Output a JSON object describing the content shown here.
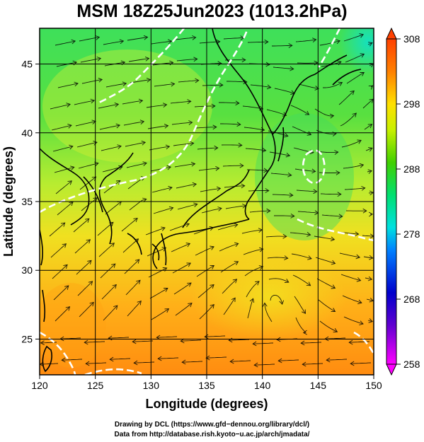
{
  "title": "MSM 18Z25Jun2023 (1013.2hPa)",
  "chart_data": {
    "type": "heatmap",
    "title": "MSM 18Z25Jun2023 (1013.2hPa)",
    "xlabel": "Longitude (degrees)",
    "ylabel": "Latitude (degrees)",
    "xlim": [
      120,
      150
    ],
    "ylim": [
      22.4,
      47.6
    ],
    "x_ticks": [
      "120",
      "125",
      "130",
      "135",
      "140",
      "145",
      "150"
    ],
    "y_ticks": [
      "25",
      "30",
      "35",
      "40",
      "45"
    ],
    "grid": true,
    "colorbar": {
      "min": 258,
      "max": 308,
      "ticks": [
        "308",
        "298",
        "288",
        "278",
        "268",
        "258"
      ],
      "colors": [
        "#ff00ff",
        "#0000cc",
        "#0080ff",
        "#00e0e0",
        "#00e070",
        "#40d000",
        "#c8f000",
        "#ffe000",
        "#ff8000",
        "#ff4000"
      ]
    },
    "overlays": [
      "streamlines",
      "coastlines",
      "isoline-white-dashed"
    ]
  },
  "credits": {
    "line1": "Drawing by DCL (https://www.gfd−dennou.org/library/dcl/)",
    "line2": "Data from http://database.rish.kyoto−u.ac.jp/arch/jmadata/"
  }
}
